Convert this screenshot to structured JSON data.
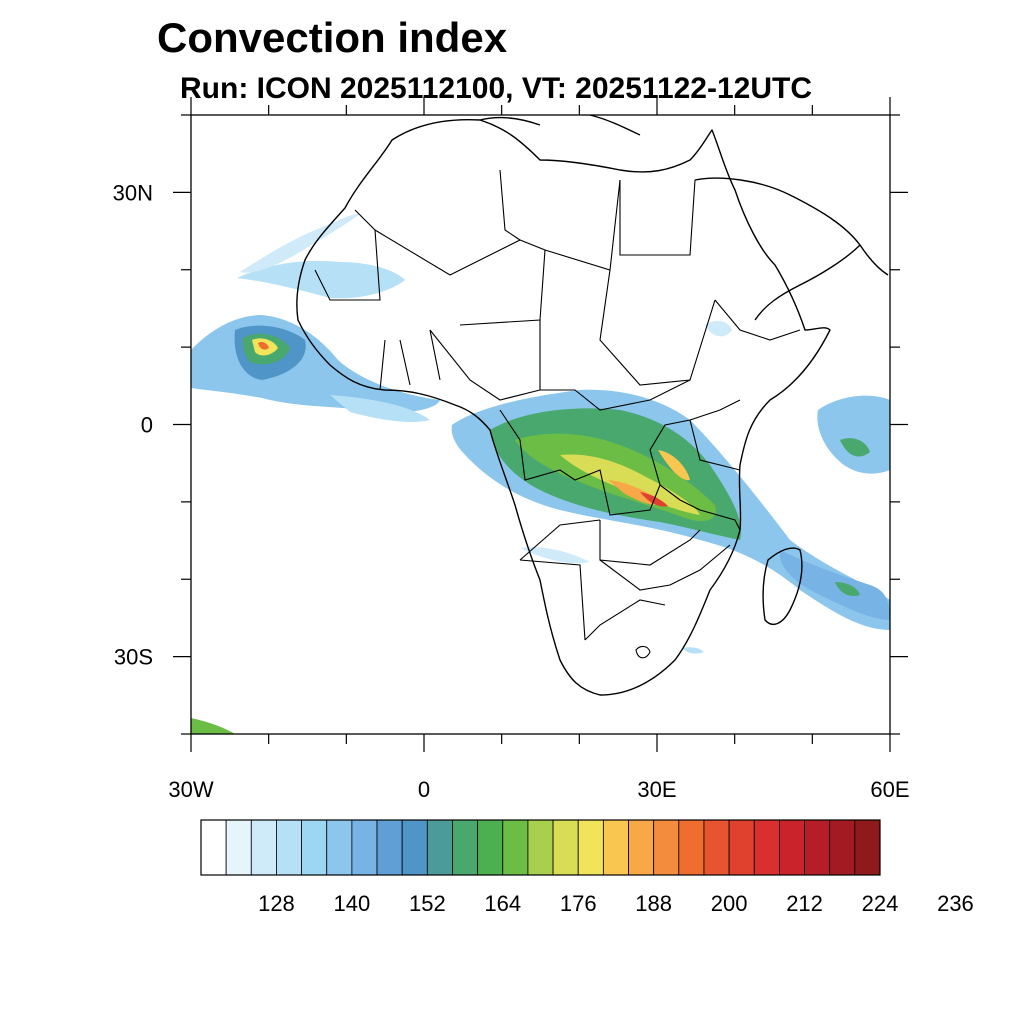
{
  "header": {
    "title": "Convection index",
    "subtitle": "Run: ICON 2025112100,  VT: 20251122-12UTC"
  },
  "map": {
    "region": "Africa",
    "lon_range": [
      -30,
      60
    ],
    "lat_range": [
      -40,
      40
    ],
    "y_ticks": [
      {
        "lat": 30,
        "label": "30N"
      },
      {
        "lat": 0,
        "label": "0"
      },
      {
        "lat": -30,
        "label": "30S"
      }
    ],
    "x_ticks": [
      {
        "lon": -30,
        "label": "30W"
      },
      {
        "lon": 0,
        "label": "0"
      },
      {
        "lon": 30,
        "label": "30E"
      },
      {
        "lon": 60,
        "label": "60E"
      }
    ]
  },
  "colorbar": {
    "colors": [
      "#ffffff",
      "#e6f4fb",
      "#cfeaf8",
      "#b5e0f5",
      "#9dd6f3",
      "#8cc6ec",
      "#77b3e5",
      "#5f9fd6",
      "#4f95c8",
      "#4a9b9a",
      "#48a86d",
      "#4caf50",
      "#6cbd46",
      "#a9cf4e",
      "#d8dd55",
      "#f1e35a",
      "#f9c64f",
      "#f8a847",
      "#f38c3c",
      "#ee6e30",
      "#e65530",
      "#e0412e",
      "#d92f2e",
      "#cb232c",
      "#b71d28",
      "#a31a22",
      "#8e1a1c"
    ],
    "labels": [
      "128",
      "140",
      "152",
      "164",
      "176",
      "188",
      "200",
      "212",
      "224",
      "236"
    ]
  }
}
